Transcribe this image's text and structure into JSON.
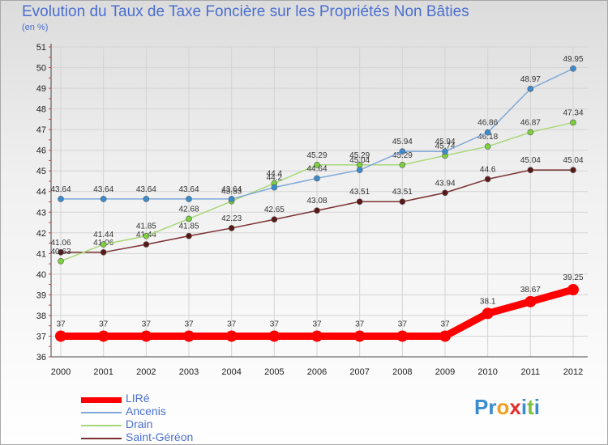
{
  "chart_data": {
    "type": "line",
    "title": "Evolution du Taux de Taxe Foncière sur les Propriétés Non Bâties",
    "unit_label": "(en %)",
    "x": [
      "2000",
      "2001",
      "2002",
      "2003",
      "2004",
      "2005",
      "2006",
      "2007",
      "2008",
      "2009",
      "2010",
      "2011",
      "2012"
    ],
    "ylim": [
      36,
      51
    ],
    "yticks": [
      36,
      37,
      38,
      39,
      40,
      41,
      42,
      43,
      44,
      45,
      46,
      47,
      48,
      49,
      50,
      51
    ],
    "grid": true,
    "legend_position": "bottom-left",
    "series": [
      {
        "name": "LIRé",
        "color": "#ff0000",
        "point_color": "#ff0000",
        "values": [
          37,
          37,
          37,
          37,
          37,
          37,
          37,
          37,
          37,
          37,
          38.1,
          38.67,
          39.25
        ],
        "labels": [
          "37",
          "37",
          "37",
          "37",
          "37",
          "37",
          "37",
          "37",
          "37",
          "37",
          "38.1",
          "38.67",
          "39.25"
        ]
      },
      {
        "name": "Ancenis",
        "color": "#7fa9d8",
        "point_color": "#3a8cd0",
        "values": [
          43.64,
          43.64,
          43.64,
          43.64,
          43.64,
          44.2,
          44.64,
          45.04,
          45.94,
          45.94,
          46.86,
          48.97,
          49.95
        ],
        "labels": [
          "43.64",
          "43.64",
          "43.64",
          "43.64",
          "43.64",
          "44.2",
          "44.64",
          "45.04",
          "45.94",
          "45.94",
          "46.86",
          "48.97",
          "49.95"
        ]
      },
      {
        "name": "Drain",
        "color": "#a8d878",
        "point_color": "#7cd040",
        "values": [
          40.63,
          41.44,
          41.85,
          42.68,
          43.53,
          44.4,
          45.29,
          45.29,
          45.29,
          45.74,
          46.18,
          46.87,
          47.34
        ],
        "labels": [
          "40.63",
          "41.44",
          "41.85",
          "42.68",
          "43.53",
          "44.4",
          "45.29",
          "45.29",
          "45.29",
          "45.74",
          "46.18",
          "46.87",
          "47.34"
        ]
      },
      {
        "name": "Saint-Géréon",
        "color": "#7a3030",
        "point_color": "#5a1818",
        "values": [
          41.06,
          41.06,
          41.44,
          41.85,
          42.23,
          42.65,
          43.08,
          43.51,
          43.51,
          43.94,
          44.6,
          45.04,
          45.04
        ],
        "labels": [
          "41.06",
          "41.06",
          "41.44",
          "41.85",
          "42.23",
          "42.65",
          "43.08",
          "43.51",
          "43.51",
          "43.94",
          "44.6",
          "45.04",
          "45.04"
        ]
      }
    ]
  },
  "brand": {
    "letters": [
      "P",
      "r",
      "o",
      "x",
      "i",
      "t",
      "i"
    ],
    "colors": [
      "#3a8cd0",
      "#3a8cd0",
      "#f0a020",
      "#e03030",
      "#3a8cd0",
      "#7cc040",
      "#3a8cd0"
    ]
  }
}
